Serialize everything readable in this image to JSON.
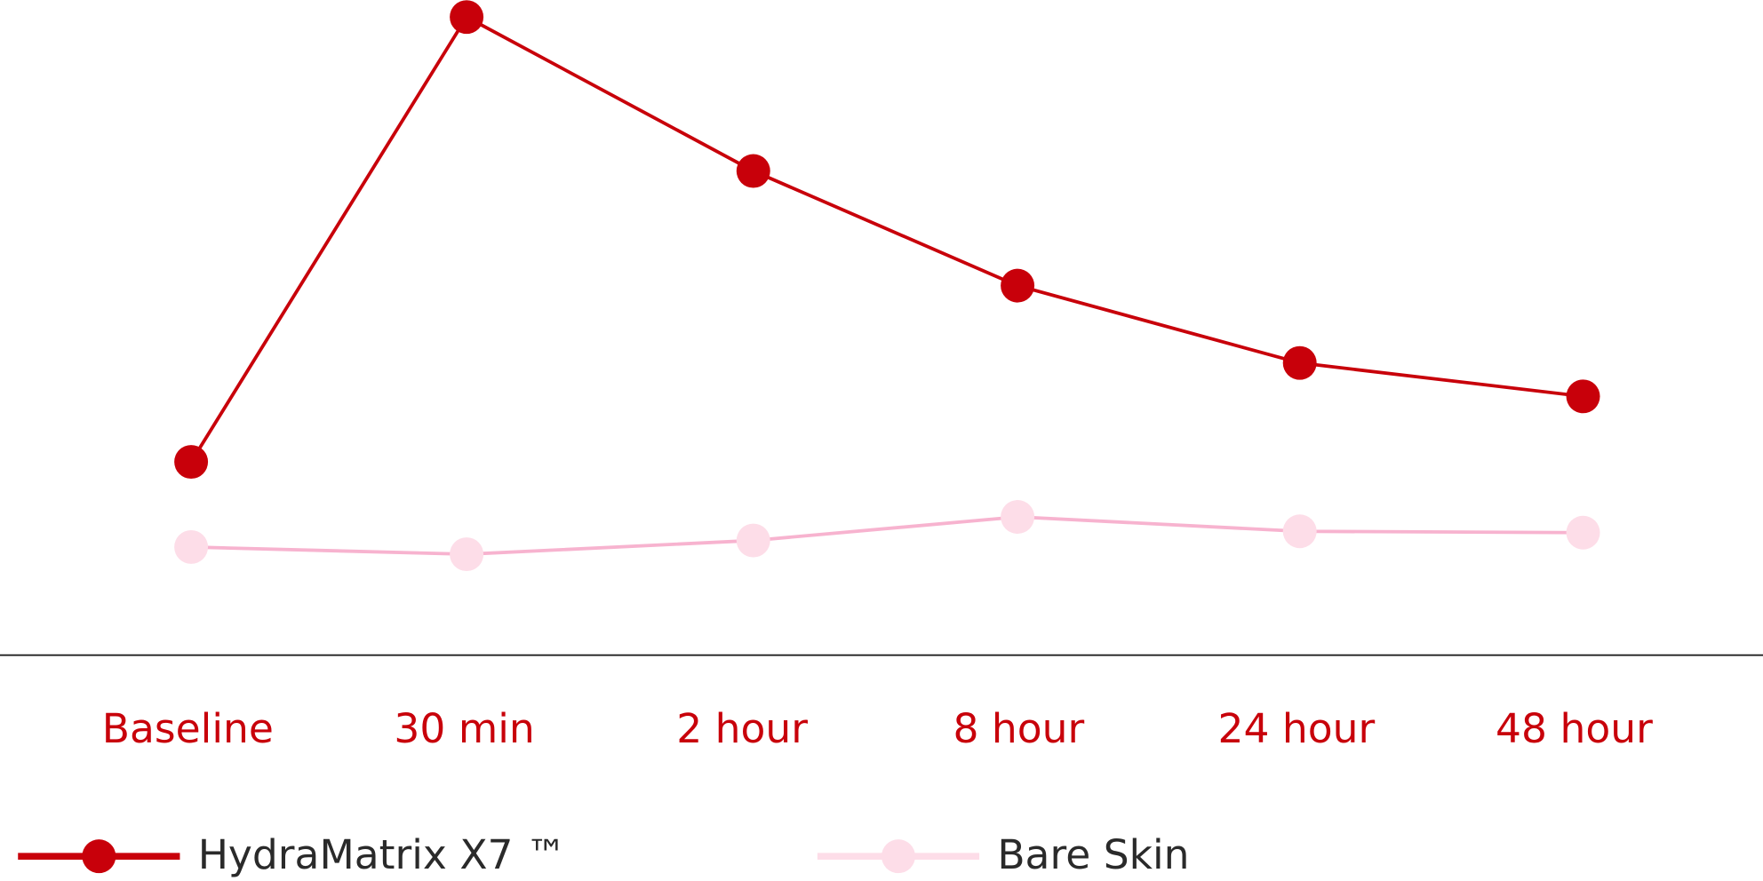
{
  "chart_data": {
    "type": "line",
    "categories": [
      "Baseline",
      "30 min",
      "2 hour",
      "8 hour",
      "24 hour",
      "48 hour"
    ],
    "series": [
      {
        "name": "HydraMatrix X7 ™",
        "color": "#c8000a",
        "marker_color": "#c8000a",
        "values": [
          29.5,
          97.4,
          73.9,
          56.4,
          44.6,
          39.5
        ]
      },
      {
        "name": "Bare Skin",
        "color": "#f7b3cf",
        "marker_color": "#fddde8",
        "values": [
          16.5,
          15.4,
          17.5,
          21.1,
          18.9,
          18.7
        ]
      }
    ],
    "ylim": [
      0,
      100
    ]
  }
}
